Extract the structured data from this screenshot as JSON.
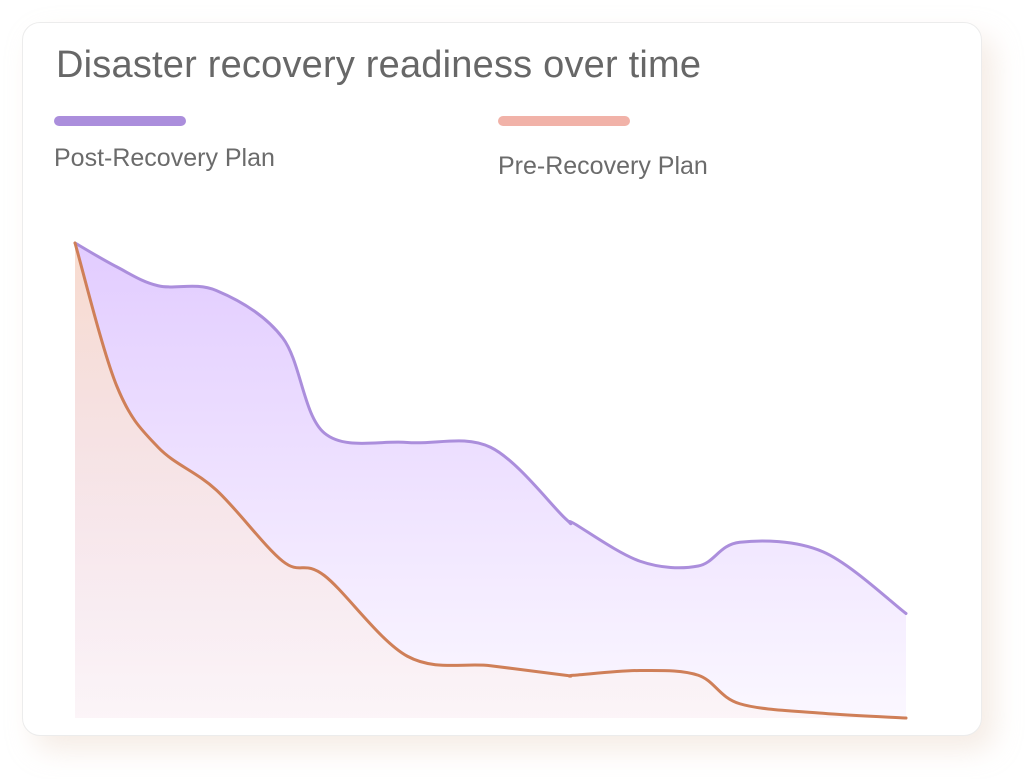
{
  "chart_data": {
    "type": "area",
    "title": "Disaster recovery readiness over time",
    "legend_position": "top",
    "grid": false,
    "xlim": [
      0,
      10
    ],
    "ylim": [
      0,
      100
    ],
    "x": [
      0,
      0.5,
      1,
      1.7,
      2.5,
      3,
      4,
      5,
      5.9,
      6,
      6.8,
      7.5,
      8,
      9,
      10
    ],
    "series": [
      {
        "name": "Post-Recovery Plan",
        "color": "#AB8EDC",
        "fill": "#E2CCFF",
        "values": [
          100,
          95,
          91,
          90,
          80,
          60,
          58,
          57,
          42,
          41,
          33,
          32,
          37,
          35,
          22
        ]
      },
      {
        "name": "Pre-Recovery Plan",
        "color": "#CF7F58",
        "fill": "#F9DCCB",
        "legend_color": "#F1B2A8",
        "values": [
          100,
          70,
          57,
          48,
          33,
          30,
          13,
          11,
          9,
          9,
          10,
          9,
          3,
          1,
          0
        ]
      }
    ]
  }
}
